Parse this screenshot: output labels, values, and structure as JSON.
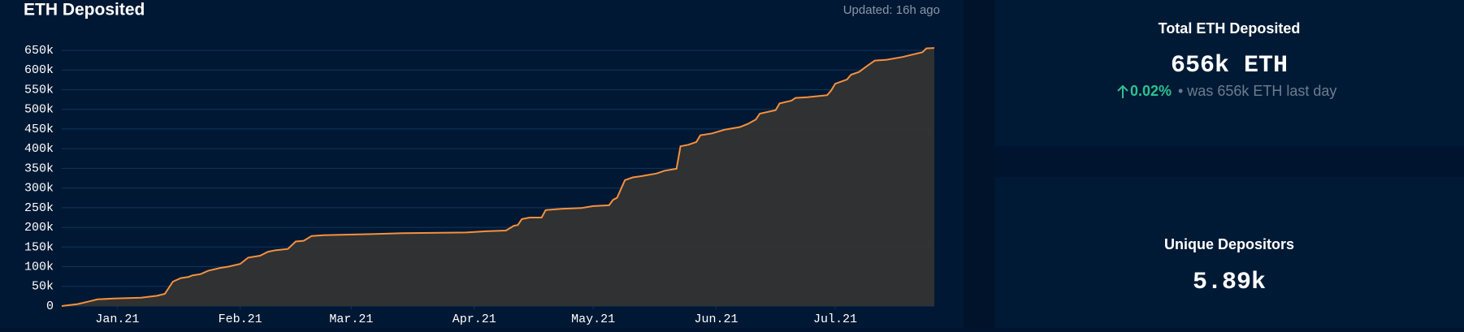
{
  "chart_data": {
    "type": "area",
    "title": "ETH Deposited",
    "subtitle": "Updated: 16h ago",
    "line_color": "#f5913e",
    "fill_color": "#333333",
    "grid": true,
    "x": [
      -14,
      -10,
      -7,
      -5,
      -1,
      6,
      10,
      12,
      14,
      16,
      18,
      19,
      21,
      23,
      26,
      28,
      31,
      33,
      36,
      38,
      40,
      43,
      45,
      47,
      49,
      52,
      65,
      72,
      88,
      93,
      98,
      100,
      101,
      102,
      104,
      107,
      108,
      112,
      117,
      120,
      124,
      125,
      126,
      128,
      130,
      132,
      136,
      138,
      141,
      142,
      144,
      146,
      147,
      150,
      153,
      157,
      159,
      161,
      162,
      166,
      167,
      170,
      171,
      174,
      179,
      180,
      181,
      184,
      185,
      187,
      189,
      191,
      194,
      198,
      200,
      203,
      204,
      206
    ],
    "values": [
      0,
      5000,
      12000,
      17000,
      19000,
      21000,
      26000,
      31000,
      62000,
      71000,
      74000,
      78000,
      81000,
      90000,
      97000,
      100000,
      107000,
      123000,
      128000,
      138000,
      142000,
      145000,
      164000,
      166000,
      178000,
      180000,
      183000,
      185000,
      187000,
      190000,
      192000,
      204000,
      206000,
      221000,
      225000,
      225000,
      244000,
      247000,
      249000,
      254000,
      256000,
      270000,
      275000,
      320000,
      327000,
      330000,
      337000,
      344000,
      349000,
      406000,
      410000,
      417000,
      434000,
      439000,
      448000,
      455000,
      463000,
      474000,
      489000,
      498000,
      515000,
      522000,
      529000,
      531000,
      536000,
      548000,
      565000,
      576000,
      588000,
      595000,
      610000,
      624000,
      626000,
      633000,
      638000,
      645000,
      655000,
      656000
    ],
    "xlim": [
      -14,
      206
    ],
    "xticks": [
      {
        "value": 0,
        "label": "Jan.21"
      },
      {
        "value": 31,
        "label": "Feb.21"
      },
      {
        "value": 59,
        "label": "Mar.21"
      },
      {
        "value": 90,
        "label": "Apr.21"
      },
      {
        "value": 120,
        "label": "May.21"
      },
      {
        "value": 151,
        "label": "Jun.21"
      },
      {
        "value": 181,
        "label": "Jul.21"
      }
    ],
    "ylim": [
      0,
      650000
    ],
    "yticks": [
      0,
      {
        "value": 50000,
        "label": "50k"
      },
      {
        "value": 100000,
        "label": "100k"
      },
      {
        "value": 150000,
        "label": "150k"
      },
      {
        "value": 200000,
        "label": "200k"
      },
      {
        "value": 250000,
        "label": "250k"
      },
      {
        "value": 300000,
        "label": "300k"
      },
      {
        "value": 350000,
        "label": "350k"
      },
      {
        "value": 400000,
        "label": "400k"
      },
      {
        "value": 450000,
        "label": "450k"
      },
      {
        "value": 500000,
        "label": "500k"
      },
      {
        "value": 550000,
        "label": "550k"
      },
      {
        "value": 600000,
        "label": "600k"
      },
      {
        "value": 650000,
        "label": "650k"
      }
    ]
  },
  "stats": [
    {
      "title": "Total ETH Deposited",
      "value": "656k ETH",
      "change": "0.02%",
      "note": "• was 656k ETH last day"
    },
    {
      "title": "Unique Depositors",
      "value": "5.89k"
    }
  ]
}
